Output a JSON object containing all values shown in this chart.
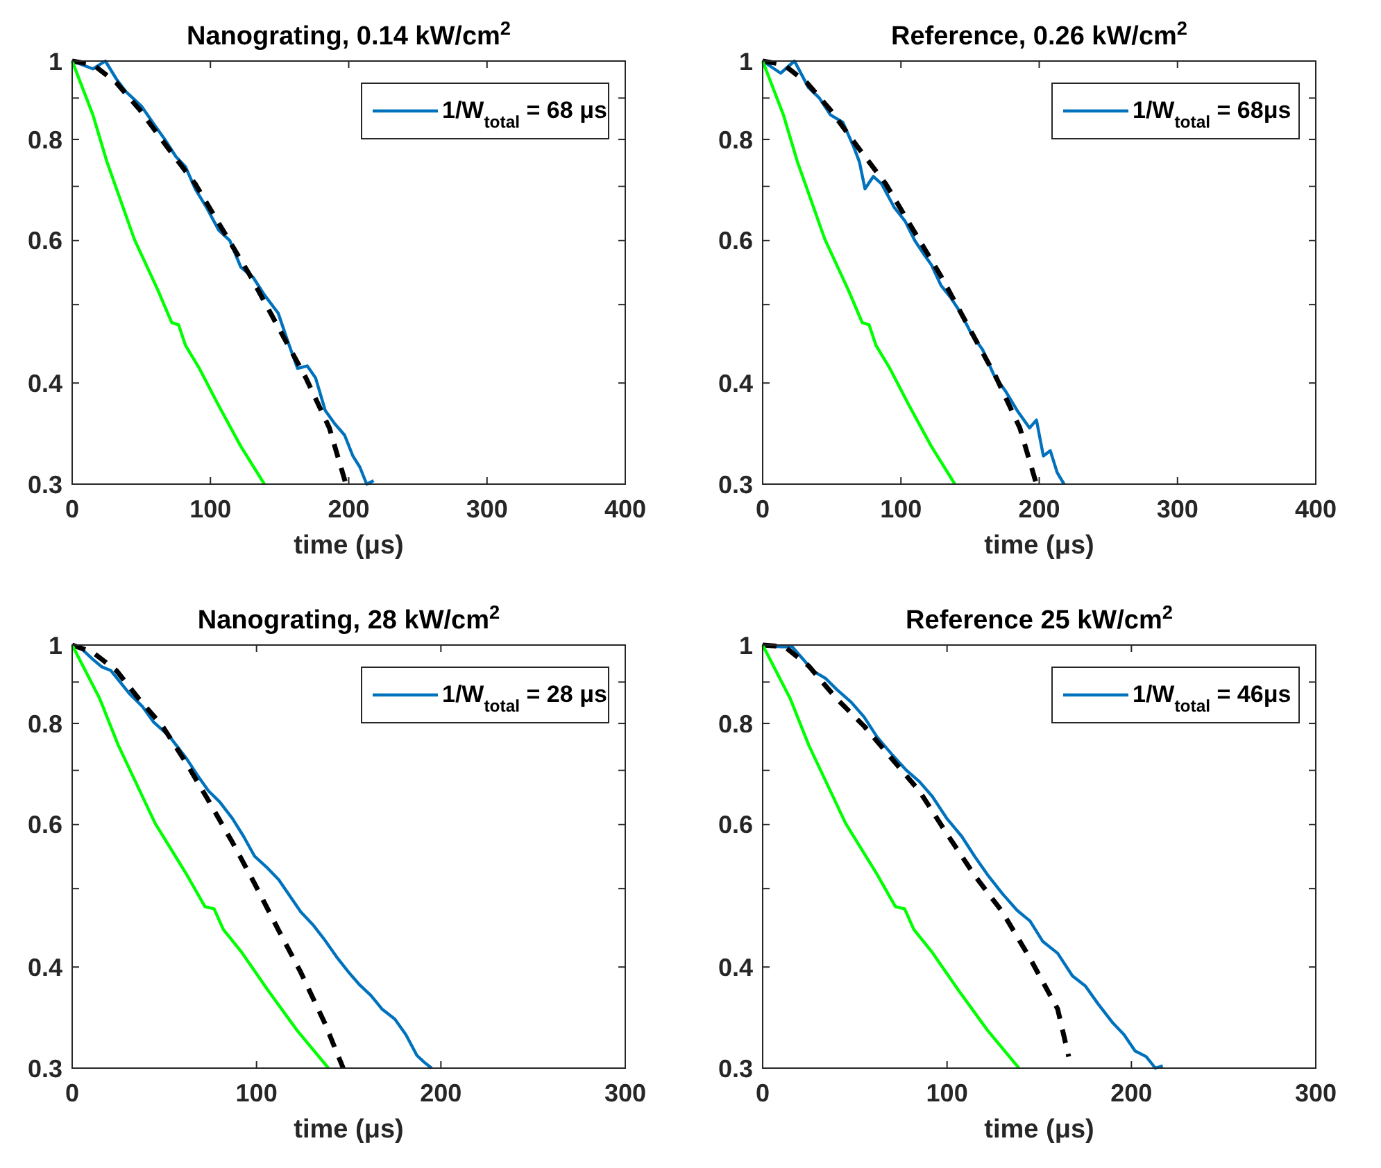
{
  "chart_data": [
    {
      "type": "line",
      "title": "Nanograting, 0.14 kW/cm$^{2}$",
      "xlabel": "time (μs)",
      "log": "y",
      "grid": false,
      "legend": "top right",
      "xlim": [
        0,
        400
      ],
      "xticks": [
        0,
        100,
        200,
        300,
        400
      ],
      "ylim": [
        0.3,
        1
      ],
      "yticks": [
        0.3,
        0.4,
        {
          "value": 0.5,
          "label": null
        },
        0.6,
        {
          "value": 0.7,
          "label": null
        },
        0.8,
        {
          "value": 0.9,
          "label": null
        },
        1
      ],
      "series": [
        {
          "name": "1/W$_{total}$ = 68 μs",
          "color": "#0072bd",
          "line_style": "solid",
          "x": [
            0,
            15,
            24,
            32,
            39,
            50,
            59,
            67,
            75,
            82,
            89,
            97,
            106,
            114,
            122,
            131,
            139,
            149,
            156,
            163,
            170,
            176,
            183,
            190,
            197,
            203,
            208,
            213,
            218
          ],
          "values": [
            1,
            0.978,
            1,
            0.95,
            0.916,
            0.88,
            0.836,
            0.8,
            0.762,
            0.74,
            0.695,
            0.66,
            0.618,
            0.6,
            0.556,
            0.54,
            0.514,
            0.488,
            0.45,
            0.417,
            0.42,
            0.406,
            0.37,
            0.356,
            0.345,
            0.325,
            0.315,
            0.3,
            0.303
          ]
        },
        {
          "color": "#000000",
          "line_style": "dashed",
          "x": [
            0,
            15,
            32,
            49,
            69,
            89,
            109,
            129,
            149,
            169,
            186,
            198
          ],
          "values": [
            1,
            0.99,
            0.94,
            0.87,
            0.782,
            0.705,
            0.618,
            0.542,
            0.469,
            0.406,
            0.352,
            0.3
          ]
        },
        {
          "color": "#00ff00",
          "line_style": "solid",
          "x": [
            0,
            15,
            25,
            45,
            62,
            72,
            77,
            82,
            92,
            106,
            122,
            139
          ],
          "values": [
            1,
            0.858,
            0.752,
            0.602,
            0.521,
            0.475,
            0.472,
            0.445,
            0.417,
            0.375,
            0.334,
            0.3
          ]
        }
      ]
    },
    {
      "type": "line",
      "title": "Reference, 0.26 kW/cm$^{2}$",
      "xlabel": "time (μs)",
      "log": "y",
      "grid": false,
      "legend": "top right",
      "xlim": [
        0,
        400
      ],
      "xticks": [
        0,
        100,
        200,
        300,
        400
      ],
      "ylim": [
        0.3,
        1
      ],
      "yticks": [
        0.3,
        0.4,
        {
          "value": 0.5,
          "label": null
        },
        0.6,
        {
          "value": 0.7,
          "label": null
        },
        0.8,
        {
          "value": 0.9,
          "label": null
        },
        1
      ],
      "series": [
        {
          "name": "1/W$_{total}$ = 68μs",
          "color": "#0072bd",
          "line_style": "solid",
          "x": [
            0,
            13,
            23,
            33,
            41,
            49,
            58,
            66,
            70,
            74,
            80,
            86,
            95,
            103,
            110,
            116,
            122,
            129,
            136,
            143,
            151,
            159,
            167,
            176,
            184,
            193,
            198,
            203,
            208,
            213,
            218
          ],
          "values": [
            1,
            0.966,
            1,
            0.928,
            0.9,
            0.858,
            0.84,
            0.782,
            0.75,
            0.695,
            0.72,
            0.705,
            0.66,
            0.634,
            0.6,
            0.579,
            0.56,
            0.528,
            0.51,
            0.489,
            0.46,
            0.44,
            0.41,
            0.39,
            0.37,
            0.352,
            0.36,
            0.325,
            0.33,
            0.31,
            0.3
          ]
        },
        {
          "color": "#000000",
          "line_style": "dashed",
          "x": [
            0,
            15,
            32,
            49,
            69,
            89,
            109,
            129,
            149,
            169,
            186,
            198
          ],
          "values": [
            1,
            0.99,
            0.94,
            0.87,
            0.782,
            0.705,
            0.618,
            0.542,
            0.469,
            0.406,
            0.352,
            0.3
          ]
        },
        {
          "color": "#00ff00",
          "line_style": "solid",
          "x": [
            0,
            15,
            25,
            45,
            62,
            72,
            77,
            82,
            92,
            106,
            122,
            139
          ],
          "values": [
            1,
            0.858,
            0.752,
            0.602,
            0.521,
            0.475,
            0.472,
            0.445,
            0.417,
            0.375,
            0.334,
            0.3
          ]
        }
      ]
    },
    {
      "type": "line",
      "title": "Nanograting, 28 kW/cm$^{2}$",
      "xlabel": "time (μs)",
      "log": "y",
      "grid": false,
      "legend": "top right",
      "xlim": [
        0,
        300
      ],
      "xticks": [
        0,
        100,
        200,
        300
      ],
      "ylim": [
        0.3,
        1
      ],
      "yticks": [
        0.3,
        0.4,
        {
          "value": 0.5,
          "label": null
        },
        0.6,
        {
          "value": 0.7,
          "label": null
        },
        0.8,
        {
          "value": 0.9,
          "label": null
        },
        1
      ],
      "series": [
        {
          "name": "1/W$_{total}$ = 28 μs",
          "color": "#0072bd",
          "line_style": "solid",
          "x": [
            0,
            5,
            11,
            16,
            21,
            26,
            31,
            38,
            44,
            53,
            62,
            68,
            74,
            80,
            87,
            93,
            99,
            106,
            112,
            118,
            124,
            131,
            137,
            144,
            150,
            156,
            162,
            168,
            175,
            181,
            187,
            191,
            195
          ],
          "values": [
            1,
            0.99,
            0.961,
            0.94,
            0.93,
            0.9,
            0.871,
            0.84,
            0.804,
            0.77,
            0.724,
            0.69,
            0.66,
            0.64,
            0.61,
            0.58,
            0.548,
            0.53,
            0.513,
            0.49,
            0.468,
            0.45,
            0.432,
            0.41,
            0.394,
            0.38,
            0.369,
            0.355,
            0.345,
            0.33,
            0.311,
            0.305,
            0.3
          ]
        },
        {
          "color": "#000000",
          "line_style": "dashed",
          "x": [
            0,
            11,
            24,
            36,
            49,
            62,
            74,
            87,
            99,
            112,
            124,
            137,
            147
          ],
          "values": [
            1,
            0.98,
            0.93,
            0.859,
            0.794,
            0.714,
            0.642,
            0.57,
            0.507,
            0.444,
            0.394,
            0.341,
            0.3
          ]
        },
        {
          "color": "#00ff00",
          "line_style": "solid",
          "x": [
            0,
            15,
            25,
            45,
            62,
            72,
            77,
            82,
            92,
            106,
            122,
            139
          ],
          "values": [
            1,
            0.858,
            0.752,
            0.602,
            0.521,
            0.475,
            0.472,
            0.445,
            0.417,
            0.375,
            0.334,
            0.3
          ]
        }
      ]
    },
    {
      "type": "line",
      "title": "Reference 25 kW/cm$^{2}$",
      "xlabel": "time (μs)",
      "log": "y",
      "grid": false,
      "legend": "top right",
      "xlim": [
        0,
        300
      ],
      "xticks": [
        0,
        100,
        200,
        300
      ],
      "ylim": [
        0.3,
        1
      ],
      "yticks": [
        0.3,
        0.4,
        {
          "value": 0.5,
          "label": null
        },
        0.6,
        {
          "value": 0.7,
          "label": null
        },
        0.8,
        {
          "value": 0.9,
          "label": null
        },
        1
      ],
      "series": [
        {
          "name": "1/W$_{total}$ = 46μs",
          "color": "#0072bd",
          "line_style": "solid",
          "x": [
            0,
            10,
            16,
            22,
            27,
            34,
            40,
            48,
            55,
            62,
            70,
            78,
            85,
            92,
            100,
            108,
            115,
            122,
            130,
            138,
            145,
            152,
            160,
            168,
            175,
            182,
            190,
            196,
            202,
            208,
            213,
            217
          ],
          "values": [
            1,
            0.995,
            0.995,
            0.96,
            0.93,
            0.91,
            0.882,
            0.85,
            0.815,
            0.77,
            0.733,
            0.7,
            0.678,
            0.65,
            0.61,
            0.58,
            0.548,
            0.52,
            0.493,
            0.47,
            0.456,
            0.43,
            0.416,
            0.39,
            0.379,
            0.36,
            0.341,
            0.33,
            0.315,
            0.31,
            0.3,
            0.302
          ]
        },
        {
          "color": "#000000",
          "line_style": "dashed",
          "x": [
            0,
            12,
            25,
            40,
            55,
            70,
            85,
            100,
            115,
            130,
            145,
            160,
            166
          ],
          "values": [
            1,
            0.995,
            0.942,
            0.859,
            0.794,
            0.724,
            0.66,
            0.584,
            0.519,
            0.468,
            0.41,
            0.355,
            0.31
          ]
        },
        {
          "color": "#00ff00",
          "line_style": "solid",
          "x": [
            0,
            15,
            25,
            45,
            62,
            72,
            77,
            82,
            92,
            106,
            122,
            139
          ],
          "values": [
            1,
            0.858,
            0.752,
            0.602,
            0.521,
            0.475,
            0.472,
            0.445,
            0.417,
            0.375,
            0.334,
            0.3
          ]
        }
      ]
    }
  ]
}
